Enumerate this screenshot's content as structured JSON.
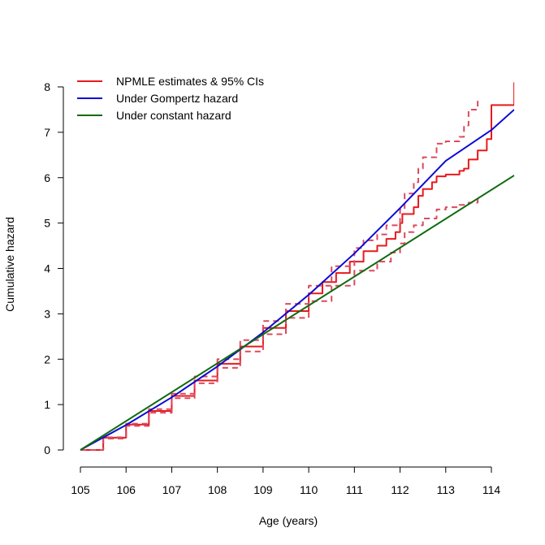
{
  "chart_data": {
    "type": "line",
    "title": "",
    "xlabel": "Age (years)",
    "ylabel": "Cumulative hazard",
    "xlim": [
      105,
      114.5
    ],
    "ylim": [
      0,
      8
    ],
    "xticks": [
      105,
      106,
      107,
      108,
      109,
      110,
      111,
      112,
      113,
      114
    ],
    "yticks": [
      0,
      1,
      2,
      3,
      4,
      5,
      6,
      7,
      8
    ],
    "grid": false,
    "legend_position": "top-left",
    "legend": [
      {
        "label": "NPMLE estimates & 95% CIs",
        "color": "#e8191c"
      },
      {
        "label": "Under Gompertz hazard",
        "color": "#0b0bd6"
      },
      {
        "label": "Under constant hazard",
        "color": "#0f6b0f"
      }
    ],
    "series": [
      {
        "name": "NPMLE estimates & 95% CIs",
        "color": "#e8191c",
        "style": "solid",
        "step": true,
        "points": [
          [
            105,
            0
          ],
          [
            105.5,
            0.27
          ],
          [
            106,
            0.56
          ],
          [
            106.5,
            0.86
          ],
          [
            107,
            1.19
          ],
          [
            107.5,
            1.53
          ],
          [
            108,
            1.9
          ],
          [
            108.5,
            2.28
          ],
          [
            109,
            2.69
          ],
          [
            109.5,
            3.06
          ],
          [
            110,
            3.45
          ],
          [
            110.3,
            3.7
          ],
          [
            110.6,
            3.9
          ],
          [
            110.9,
            4.15
          ],
          [
            111.2,
            4.38
          ],
          [
            111.5,
            4.5
          ],
          [
            111.7,
            4.65
          ],
          [
            111.9,
            4.8
          ],
          [
            112,
            5.0
          ],
          [
            112.05,
            5.2
          ],
          [
            112.3,
            5.35
          ],
          [
            112.4,
            5.6
          ],
          [
            112.5,
            5.75
          ],
          [
            112.7,
            5.9
          ],
          [
            112.8,
            6.03
          ],
          [
            113,
            6.07
          ],
          [
            113.3,
            6.15
          ],
          [
            113.4,
            6.2
          ],
          [
            113.5,
            6.4
          ],
          [
            113.7,
            6.6
          ],
          [
            113.9,
            6.85
          ],
          [
            114,
            7.6
          ],
          [
            114.5,
            8.1
          ]
        ]
      },
      {
        "name": "NPMLE upper 95% CI",
        "color": "#db4a5e",
        "style": "dashed",
        "step": true,
        "points": [
          [
            105,
            0
          ],
          [
            105.5,
            0.28
          ],
          [
            106,
            0.58
          ],
          [
            106.5,
            0.9
          ],
          [
            107,
            1.24
          ],
          [
            107.5,
            1.62
          ],
          [
            108,
            2.0
          ],
          [
            108.5,
            2.42
          ],
          [
            109,
            2.84
          ],
          [
            109.5,
            3.22
          ],
          [
            110,
            3.62
          ],
          [
            110.5,
            4.05
          ],
          [
            111,
            4.45
          ],
          [
            111.2,
            4.62
          ],
          [
            111.5,
            4.75
          ],
          [
            111.7,
            4.95
          ],
          [
            112,
            5.3
          ],
          [
            112.1,
            5.65
          ],
          [
            112.3,
            5.9
          ],
          [
            112.4,
            6.2
          ],
          [
            112.5,
            6.45
          ],
          [
            112.8,
            6.75
          ],
          [
            113,
            6.8
          ],
          [
            113.3,
            6.9
          ],
          [
            113.4,
            7.15
          ],
          [
            113.5,
            7.5
          ],
          [
            113.7,
            7.7
          ]
        ]
      },
      {
        "name": "NPMLE lower 95% CI",
        "color": "#db4a5e",
        "style": "dashed",
        "step": true,
        "points": [
          [
            105,
            0
          ],
          [
            105.5,
            0.25
          ],
          [
            106,
            0.53
          ],
          [
            106.5,
            0.82
          ],
          [
            107,
            1.14
          ],
          [
            107.5,
            1.47
          ],
          [
            108,
            1.81
          ],
          [
            108.5,
            2.17
          ],
          [
            109,
            2.55
          ],
          [
            109.5,
            2.91
          ],
          [
            110,
            3.28
          ],
          [
            110.5,
            3.62
          ],
          [
            111,
            3.95
          ],
          [
            111.5,
            4.15
          ],
          [
            111.8,
            4.35
          ],
          [
            112,
            4.55
          ],
          [
            112.1,
            4.8
          ],
          [
            112.3,
            4.95
          ],
          [
            112.5,
            5.1
          ],
          [
            112.8,
            5.3
          ],
          [
            113,
            5.35
          ],
          [
            113.3,
            5.4
          ],
          [
            113.5,
            5.45
          ],
          [
            113.7,
            5.55
          ]
        ]
      },
      {
        "name": "Under Gompertz hazard",
        "color": "#0b0bd6",
        "style": "solid",
        "step": false,
        "points": [
          [
            105,
            0
          ],
          [
            106,
            0.55
          ],
          [
            107,
            1.16
          ],
          [
            108,
            1.84
          ],
          [
            109,
            2.59
          ],
          [
            110,
            3.42
          ],
          [
            111,
            4.33
          ],
          [
            112,
            5.33
          ],
          [
            113,
            6.37
          ],
          [
            114,
            7.05
          ],
          [
            114.5,
            7.5
          ]
        ]
      },
      {
        "name": "Under constant hazard",
        "color": "#0f6b0f",
        "style": "solid",
        "step": false,
        "points": [
          [
            105,
            0
          ],
          [
            114.5,
            6.05
          ]
        ]
      }
    ]
  }
}
